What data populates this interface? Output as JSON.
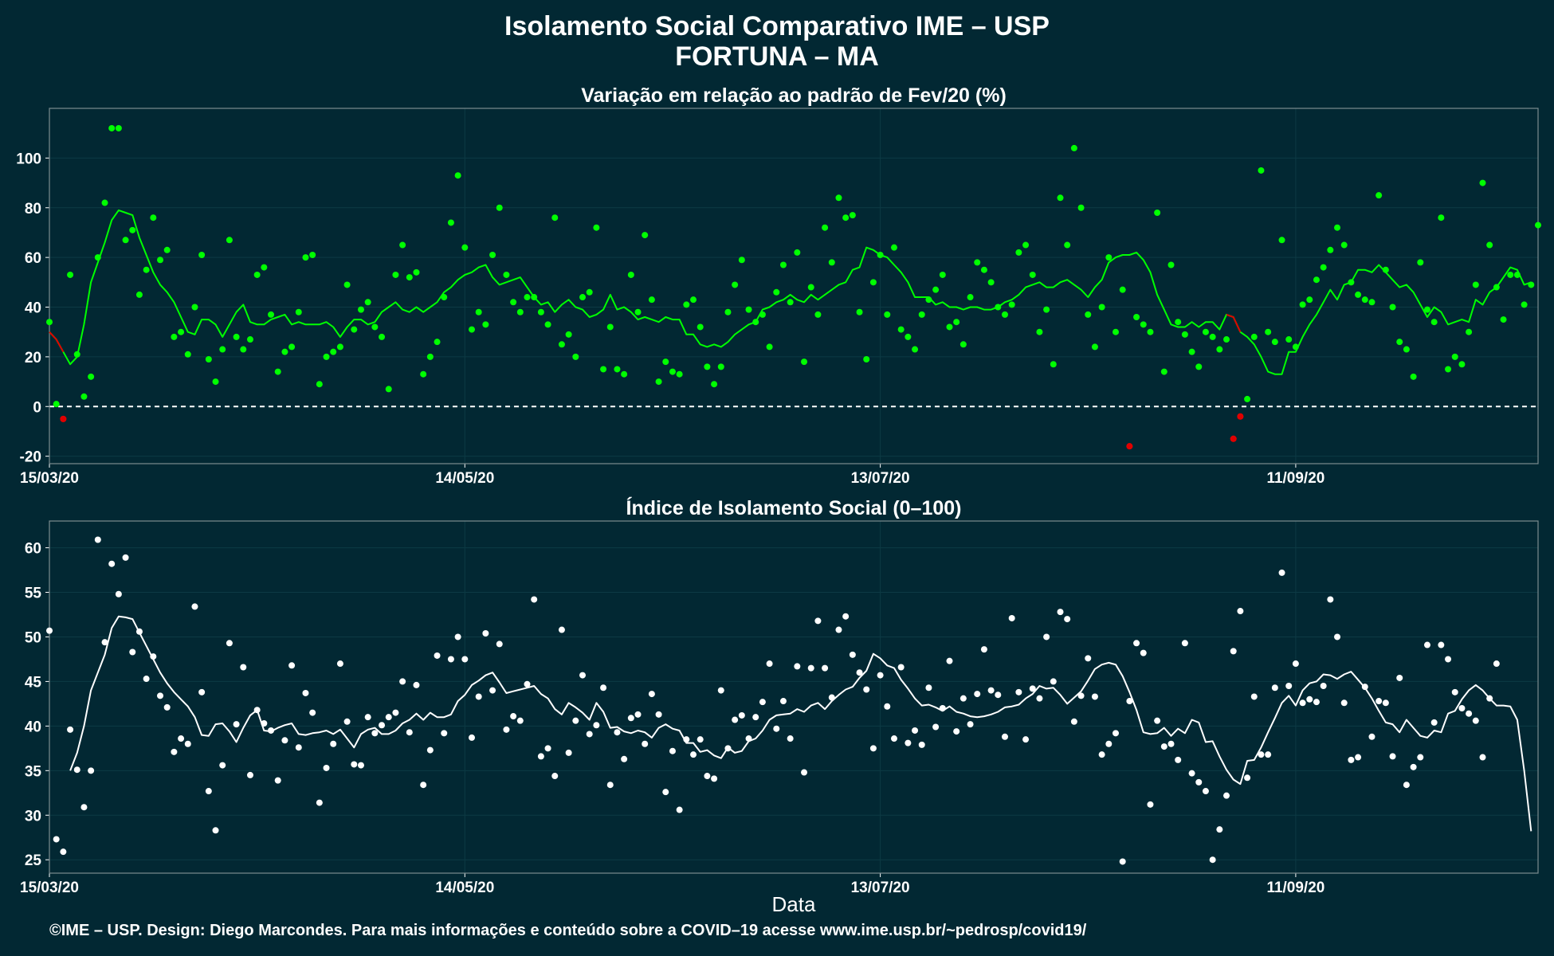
{
  "title": "Isolamento Social Comparativo IME – USP",
  "subtitle": "FORTUNA – MA",
  "footer": "©IME – USP. Design: Diego Marcondes. Para mais informações e conteúdo sobre a COVID–19 acesse www.ime.usp.br/~pedrosp/covid19/",
  "colors": {
    "background": "#022833",
    "green": "#00ff00",
    "red": "#e00000",
    "white": "#ffffff",
    "frame": "#7c8c90"
  },
  "chart_data": [
    {
      "type": "scatter",
      "title": "Variação em relação ao padrão de Fev/20 (%)",
      "xlabel": "",
      "ylabel": "",
      "x_ticks": [
        "15/03/20",
        "14/05/20",
        "13/07/20",
        "11/09/20"
      ],
      "x_range": [
        "15/03/20",
        "16/10/20"
      ],
      "ylim": [
        -23,
        120
      ],
      "y_ticks": [
        -20,
        0,
        20,
        40,
        60,
        80,
        100
      ],
      "reference_line": 0,
      "grid": true,
      "series": [
        {
          "name": "",
          "kind": "points",
          "values": [
            34,
            1,
            -5,
            53,
            21,
            4,
            12,
            60,
            82,
            112,
            112,
            67,
            71,
            45,
            55,
            76,
            59,
            63,
            28,
            30,
            21,
            40,
            61,
            19,
            10,
            23,
            67,
            28,
            23,
            27,
            53,
            56,
            37,
            14,
            22,
            24,
            38,
            60,
            61,
            9,
            20,
            22,
            24,
            49,
            31,
            39,
            42,
            32,
            28,
            7,
            53,
            65,
            52,
            54,
            13,
            20,
            26,
            44,
            74,
            93,
            64,
            31,
            38,
            33,
            61,
            80,
            53,
            42,
            38,
            44,
            44,
            38,
            33,
            76,
            25,
            29,
            20,
            44,
            46,
            72,
            15,
            32,
            15,
            13,
            53,
            38,
            69,
            43,
            10,
            18,
            14,
            13,
            41,
            43,
            32,
            16,
            9,
            16,
            38,
            49,
            59,
            39,
            34,
            37,
            24,
            46,
            57,
            42,
            62,
            18,
            48,
            37,
            72,
            58,
            84,
            76,
            77,
            38,
            19,
            50,
            61,
            37,
            64,
            31,
            28,
            23,
            37,
            43,
            47,
            53,
            32,
            34,
            25,
            44,
            58,
            55,
            50,
            40,
            37,
            41,
            62,
            65,
            53,
            30,
            39,
            17,
            84,
            65,
            104,
            80,
            37,
            24,
            40,
            60,
            30,
            47,
            -16,
            36,
            33,
            30,
            78,
            14,
            57,
            34,
            29,
            22,
            16,
            30,
            28,
            23,
            27,
            -13,
            -4,
            3,
            28,
            95,
            30,
            26,
            67,
            27,
            24,
            41,
            43,
            51,
            56,
            63,
            72,
            65,
            50,
            45,
            43,
            42,
            85,
            55,
            40,
            26,
            23,
            12,
            58,
            39,
            34,
            76,
            15,
            20,
            17,
            30,
            49,
            90,
            65,
            48,
            35,
            53,
            53,
            41,
            49,
            73
          ]
        },
        {
          "name": "",
          "kind": "moving_average",
          "values": [
            30,
            27,
            22,
            17,
            20,
            33,
            50,
            58,
            66,
            75,
            79,
            78,
            77,
            68,
            61,
            54,
            49,
            46,
            42,
            36,
            30,
            29,
            35,
            35,
            33,
            28,
            33,
            38,
            41,
            34,
            33,
            33,
            35,
            36,
            37,
            33,
            34,
            33,
            33,
            33,
            34,
            32,
            28,
            32,
            35,
            35,
            33,
            34,
            38,
            40,
            42,
            39,
            38,
            40,
            38,
            40,
            42,
            46,
            48,
            51,
            53,
            54,
            56,
            57,
            52,
            49,
            50,
            51,
            52,
            48,
            44,
            41,
            42,
            38,
            41,
            43,
            40,
            39,
            36,
            37,
            39,
            45,
            39,
            40,
            38,
            35,
            36,
            35,
            34,
            36,
            35,
            35,
            29,
            29,
            25,
            24,
            25,
            24,
            26,
            29,
            31,
            33,
            34,
            39,
            40,
            42,
            43,
            45,
            43,
            42,
            45,
            43,
            45,
            47,
            49,
            50,
            55,
            56,
            64,
            63,
            61,
            60,
            57,
            54,
            50,
            44,
            44,
            44,
            41,
            42,
            40,
            40,
            39,
            40,
            40,
            39,
            39,
            40,
            42,
            43,
            45,
            48,
            49,
            50,
            48,
            48,
            50,
            51,
            49,
            47,
            44,
            48,
            51,
            58,
            60,
            61,
            61,
            62,
            59,
            54,
            45,
            39,
            33,
            32,
            32,
            34,
            32,
            34,
            34,
            31,
            37,
            36,
            30,
            28,
            25,
            20,
            14,
            13,
            13,
            22,
            22,
            28,
            33,
            37,
            42,
            47,
            43,
            49,
            50,
            55,
            55,
            54,
            57,
            54,
            51,
            48,
            49,
            46,
            41,
            36,
            40,
            38,
            33,
            34,
            35,
            34,
            43,
            41,
            46,
            48,
            52,
            56,
            55,
            49,
            50
          ]
        },
        {
          "name": "",
          "kind": "highlight_red_points",
          "x_index": [
            2,
            156,
            171,
            172
          ],
          "values": [
            -5,
            -16,
            -13,
            -4
          ]
        }
      ]
    },
    {
      "type": "scatter",
      "title": "Índice de Isolamento Social (0–100)",
      "xlabel": "Data",
      "ylabel": "",
      "x_ticks": [
        "15/03/20",
        "14/05/20",
        "13/07/20",
        "11/09/20"
      ],
      "x_range": [
        "15/03/20",
        "16/10/20"
      ],
      "ylim": [
        23.5,
        63
      ],
      "y_ticks": [
        25,
        30,
        35,
        40,
        45,
        50,
        55,
        60
      ],
      "grid": true,
      "series": [
        {
          "name": "",
          "kind": "points",
          "values": [
            50.7,
            27.3,
            25.9,
            39.6,
            35.1,
            30.9,
            35,
            60.9,
            49.4,
            58.2,
            54.8,
            58.9,
            48.3,
            50.6,
            45.3,
            47.8,
            43.4,
            42.1,
            37.1,
            38.6,
            38,
            53.4,
            43.8,
            32.7,
            28.3,
            35.6,
            49.3,
            40.2,
            46.6,
            34.5,
            41.8,
            40.3,
            39.5,
            33.9,
            38.4,
            46.8,
            37.6,
            43.7,
            41.5,
            31.4,
            35.3,
            38,
            47,
            40.5,
            35.7,
            35.6,
            41,
            39.2,
            40.1,
            41,
            41.5,
            45,
            39.3,
            44.6,
            33.4,
            37.3,
            47.9,
            39.2,
            47.5,
            50,
            47.5,
            38.7,
            43.3,
            50.4,
            44,
            49.2,
            39.6,
            41.1,
            40.6,
            44.7,
            54.2,
            36.6,
            37.5,
            34.4,
            50.8,
            37,
            40.6,
            45.7,
            39.1,
            40.1,
            44.3,
            33.4,
            39.3,
            36.3,
            40.9,
            41.3,
            38,
            43.6,
            41.3,
            32.6,
            37.2,
            30.6,
            38.5,
            36.8,
            38.5,
            34.4,
            34.1,
            44,
            37.5,
            40.7,
            41.2,
            38.6,
            41,
            42.7,
            47,
            39.7,
            42.8,
            38.6,
            46.7,
            34.8,
            46.5,
            51.8,
            46.5,
            43.2,
            50.8,
            52.3,
            48,
            46,
            44.1,
            37.5,
            45.7,
            42.2,
            38.6,
            46.6,
            38.1,
            39.5,
            37.9,
            44.3,
            39.9,
            42,
            47.3,
            39.4,
            43.1,
            40.2,
            43.6,
            48.6,
            44,
            43.5,
            38.8,
            52.1,
            43.8,
            38.5,
            44.2,
            43.1,
            50,
            45,
            52.8,
            52,
            40.5,
            43.4,
            47.6,
            43.3,
            36.8,
            38,
            39.2,
            24.8,
            42.8,
            49.3,
            48.2,
            31.2,
            40.6,
            37.7,
            38,
            36.2,
            49.3,
            34.7,
            33.7,
            32.7,
            25,
            28.4,
            32.2,
            48.4,
            52.9,
            34.2,
            43.3,
            36.8,
            36.8,
            44.3,
            57.2,
            44.5,
            47,
            42.6,
            43,
            42.7,
            44.5,
            54.2,
            50,
            42.6,
            36.2,
            36.5,
            44.4,
            38.8,
            42.8,
            42.6,
            36.6,
            45.4,
            33.4,
            35.4,
            36.5,
            49.1,
            40.4,
            49.1,
            47.5,
            43.8,
            42,
            41.4,
            40.6,
            36.5,
            43.1,
            47
          ]
        },
        {
          "name": "",
          "kind": "moving_average",
          "values": [
            35,
            37,
            40,
            44,
            46,
            48,
            51,
            52.3,
            52.2,
            52,
            50.5,
            49,
            47.5,
            46,
            44.8,
            43.8,
            43,
            42.2,
            41,
            39,
            38.9,
            40.2,
            40.3,
            39.4,
            38.2,
            39.8,
            41.2,
            41.8,
            39.5,
            39.4,
            39.8,
            40.1,
            40.3,
            39.1,
            39,
            39.2,
            39.3,
            39.5,
            39.1,
            39.6,
            38.6,
            37.6,
            39.1,
            39.6,
            39.8,
            39.1,
            39.1,
            39.5,
            40.3,
            40.7,
            41.4,
            40.7,
            41.5,
            41,
            41,
            41.3,
            42.8,
            43.5,
            44.6,
            45.1,
            45.7,
            46,
            44.9,
            43.7,
            43.9,
            44.1,
            44.3,
            44.5,
            43.6,
            43.1,
            41.9,
            41.3,
            42.6,
            42.1,
            41.5,
            40.7,
            42.6,
            41.6,
            39.8,
            39.9,
            39.4,
            39.2,
            39.5,
            39.3,
            38.7,
            39.8,
            40.2,
            39.7,
            39.5,
            38.1,
            38.1,
            37.1,
            37.3,
            36.7,
            36.4,
            37.6,
            37,
            37.2,
            38.3,
            38.6,
            39.5,
            40.7,
            41.2,
            41.3,
            41.4,
            41.9,
            41.6,
            42.3,
            42.6,
            41.9,
            42.8,
            43.5,
            44.1,
            44.4,
            45.4,
            46.2,
            48.1,
            47.6,
            46.8,
            46.5,
            45.2,
            44.2,
            43.1,
            42.3,
            42.4,
            42.1,
            41.7,
            42.2,
            41.6,
            41.4,
            41.1,
            41,
            41.1,
            41.3,
            41.6,
            42.1,
            42.2,
            42.4,
            43.1,
            43.6,
            44.5,
            44.2,
            44.3,
            43.5,
            42.5,
            43.2,
            43.9,
            45.1,
            46.4,
            46.9,
            47.1,
            46.9,
            45.6,
            43.8,
            41.8,
            39.3,
            39.1,
            39.2,
            39.8,
            38.9,
            39.7,
            39.2,
            40.7,
            40.4,
            38.2,
            38.3,
            36.6,
            35.1,
            34,
            33.5,
            36.1,
            36.2,
            37.6,
            39.3,
            40.9,
            42.6,
            43.4,
            42.3,
            44,
            44.8,
            45,
            45.8,
            45.7,
            45.3,
            45.8,
            46.1,
            45.2,
            44.3,
            43.1,
            41.7,
            40.4,
            40.2,
            39.3,
            40.7,
            39.8,
            38.9,
            38.7,
            39.5,
            39.3,
            41.4,
            41.7,
            43,
            44,
            44.6,
            44,
            43.1,
            42.3,
            42.3,
            42.2,
            40.7,
            35,
            28.2
          ]
        }
      ]
    }
  ]
}
